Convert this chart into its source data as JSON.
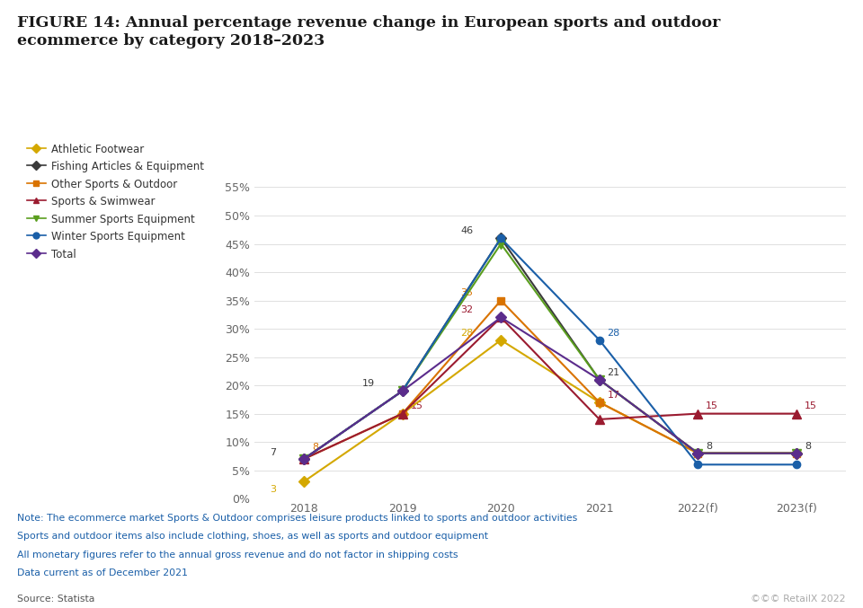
{
  "title_line1": "FIGURE 14: Annual percentage revenue change in European sports and outdoor",
  "title_line2": "ecommerce by category 2018–2023",
  "x_labels": [
    "2018",
    "2019",
    "2020",
    "2021",
    "2022(f)",
    "2023(f)"
  ],
  "series": [
    {
      "name": "Athletic Footwear",
      "values": [
        3,
        15,
        28,
        17,
        8,
        8
      ],
      "color": "#d4a800",
      "marker": "D",
      "markersize": 6
    },
    {
      "name": "Fishing Articles & Equipment",
      "values": [
        7,
        19,
        46,
        21,
        8,
        8
      ],
      "color": "#3a3a3a",
      "marker": "D",
      "markersize": 6
    },
    {
      "name": "Other Sports & Outdoor",
      "values": [
        7,
        15,
        35,
        17,
        8,
        8
      ],
      "color": "#d97300",
      "marker": "s",
      "markersize": 6
    },
    {
      "name": "Sports & Swimwear",
      "values": [
        7,
        15,
        32,
        14,
        15,
        15
      ],
      "color": "#9b1b30",
      "marker": "^",
      "markersize": 7
    },
    {
      "name": "Summer Sports Equipment",
      "values": [
        7,
        19,
        45,
        21,
        8,
        8
      ],
      "color": "#5a9e1e",
      "marker": "v",
      "markersize": 7
    },
    {
      "name": "Winter Sports Equipment",
      "values": [
        7,
        19,
        46,
        28,
        6,
        6
      ],
      "color": "#1a5fa8",
      "marker": "o",
      "markersize": 6
    },
    {
      "name": "Total",
      "values": [
        7,
        19,
        32,
        21,
        8,
        8
      ],
      "color": "#5b2c8c",
      "marker": "D",
      "markersize": 6
    }
  ],
  "ylim": [
    0,
    58
  ],
  "yticks": [
    0,
    5,
    10,
    15,
    20,
    25,
    30,
    35,
    40,
    45,
    50,
    55
  ],
  "ytick_labels": [
    "0%",
    "5%",
    "10%",
    "15%",
    "20%",
    "25%",
    "30%",
    "35%",
    "40%",
    "45%",
    "50%",
    "55%"
  ],
  "background_color": "#ffffff",
  "note_lines": [
    "Note: The ecommerce market Sports & Outdoor comprises leisure products linked to sports and outdoor activities",
    "Sports and outdoor items also include clothing, shoes, as well as sports and outdoor equipment",
    "All monetary figures refer to the annual gross revenue and do not factor in shipping costs",
    "Data current as of December 2021"
  ],
  "source": "Source: Statista",
  "watermark": "©©© RetailX 2022",
  "note_color": "#1a5fa8",
  "title_color": "#1a1a1a",
  "label_color": "#666666"
}
